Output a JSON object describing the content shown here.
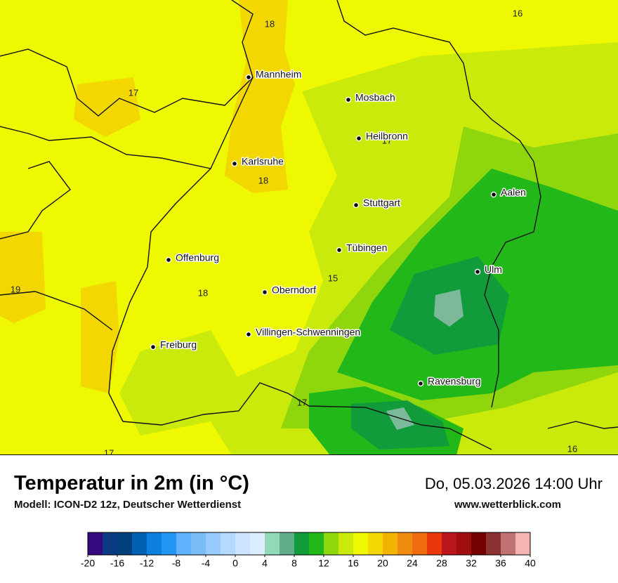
{
  "map": {
    "cities": [
      "Mannheim",
      "Mosbach",
      "Heilbronn",
      "Karlsruhe",
      "Aalen",
      "Stuttgart",
      "Tübingen",
      "Offenburg",
      "Ulm",
      "Oberndorf",
      "Villingen-Schwenningen",
      "Freiburg",
      "Ravensburg"
    ],
    "contour_labels": [
      18,
      16,
      17,
      17,
      18,
      19,
      15,
      18,
      17,
      17,
      16
    ]
  },
  "footer": {
    "title": "Temperatur in 2m (in °C)",
    "subtitle": "Modell: ICON-D2 12z, Deutscher Wetterdienst",
    "datetime": "Do, 05.03.2026 14:00 Uhr",
    "website": "www.wetterblick.com"
  },
  "colorbar": {
    "range": [
      -20,
      40
    ],
    "colors": [
      "#36087f",
      "#0a3a82",
      "#003f7a",
      "#0060b4",
      "#0c80dc",
      "#2196f3",
      "#5fb0ff",
      "#7cbcf8",
      "#98cbff",
      "#b4d9ff",
      "#cce4ff",
      "#dcecff",
      "#92d9b8",
      "#62ad8a",
      "#119b3a",
      "#22b81a",
      "#8fd70c",
      "#caea0c",
      "#eef800",
      "#f2d800",
      "#f2b400",
      "#f08a10",
      "#f06a10",
      "#e8380c",
      "#b8161a",
      "#a00e12",
      "#740000",
      "#8c3232",
      "#c07272",
      "#f5b4b4"
    ],
    "ticks": [
      -20,
      -16,
      -12,
      -8,
      -4,
      0,
      4,
      8,
      12,
      16,
      20,
      24,
      28,
      32,
      36,
      40
    ]
  }
}
